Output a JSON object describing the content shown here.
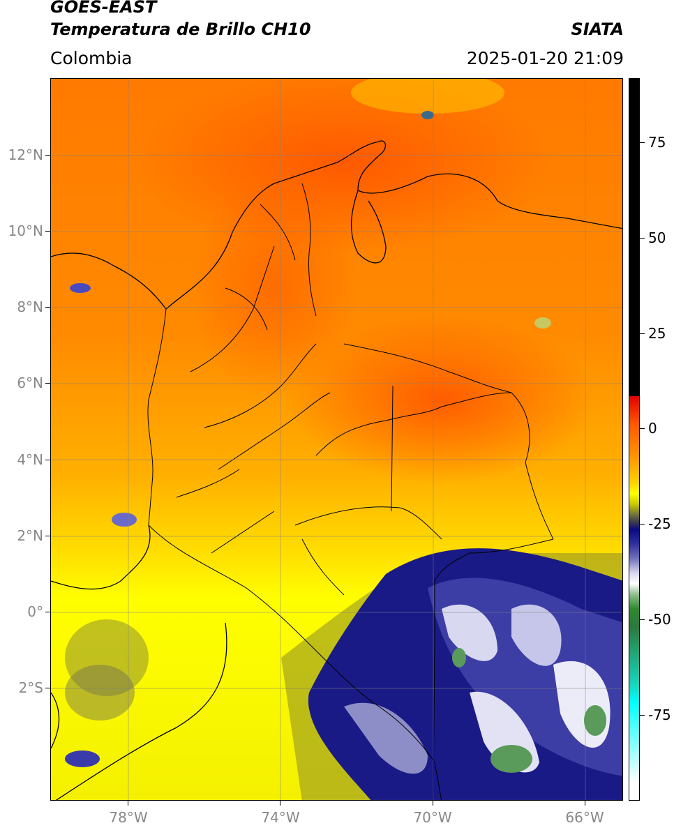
{
  "header": {
    "title_line1": "GOES-EAST",
    "title_line2": "Temperatura de Brillo CH10",
    "credit": "SIATA",
    "region": "Colombia",
    "timestamp": "2025-01-20 21:09"
  },
  "map": {
    "latitude_labels": [
      "12°N",
      "10°N",
      "8°N",
      "6°N",
      "4°N",
      "2°N",
      "0°",
      "2°S"
    ],
    "longitude_labels": [
      "78°W",
      "74°W",
      "70°W",
      "66°W"
    ]
  },
  "colorbar": {
    "labels": [
      "75",
      "50",
      "25",
      "0",
      "-25",
      "-50",
      "-75"
    ]
  },
  "colors": {
    "warm": "#ff6a00",
    "mid": "#ffff00",
    "cold": "#1a1a8a",
    "coldest": "#ffffff"
  }
}
